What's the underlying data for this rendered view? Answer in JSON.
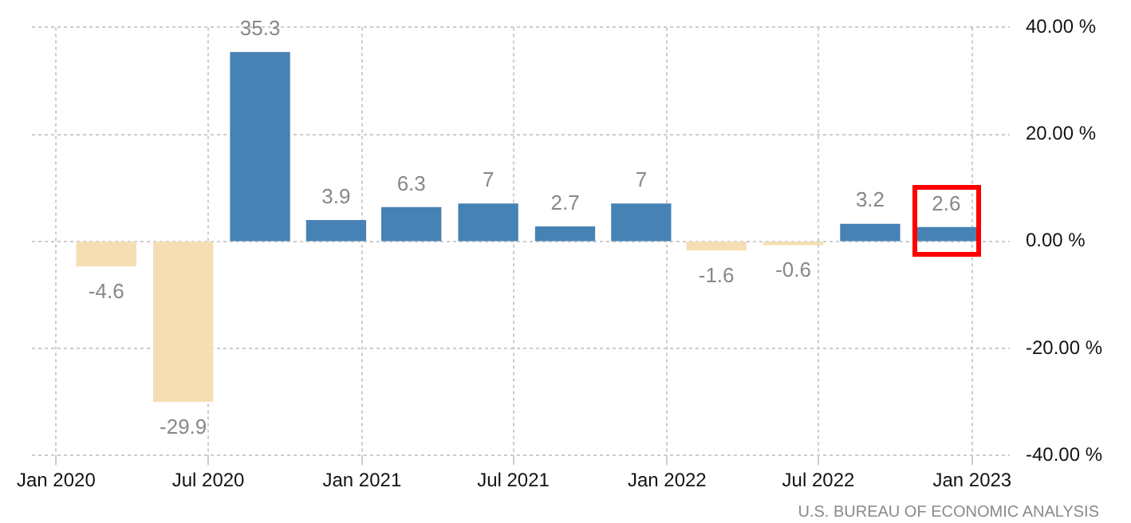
{
  "chart_data": {
    "type": "bar",
    "x": [
      "2020-03-01",
      "2020-06-01",
      "2020-09-01",
      "2020-12-01",
      "2021-03-01",
      "2021-06-01",
      "2021-09-01",
      "2021-12-01",
      "2022-03-01",
      "2022-06-01",
      "2022-09-01",
      "2022-12-01"
    ],
    "values": [
      -4.6,
      -29.9,
      35.3,
      3.9,
      6.3,
      7,
      2.7,
      7,
      -1.6,
      -0.6,
      3.2,
      2.6
    ],
    "colors": [
      "#f5deb3",
      "#f5deb3",
      "#4682b4",
      "#4682b4",
      "#4682b4",
      "#4682b4",
      "#4682b4",
      "#4682b4",
      "#f5deb3",
      "#f5deb3",
      "#4682b4",
      "#4682b4"
    ],
    "xlim": [
      "2019-12-03",
      "2023-02-15"
    ],
    "xticks": [
      {
        "value": "2020-01-01",
        "label": "Jan 2020"
      },
      {
        "value": "2020-07-01",
        "label": "Jul 2020"
      },
      {
        "value": "2021-01-01",
        "label": "Jan 2021"
      },
      {
        "value": "2021-07-01",
        "label": "Jul 2021"
      },
      {
        "value": "2022-01-01",
        "label": "Jan 2022"
      },
      {
        "value": "2022-07-01",
        "label": "Jul 2022"
      },
      {
        "value": "2023-01-01",
        "label": "Jan 2023"
      }
    ],
    "ylim": [
      -40,
      40
    ],
    "yticks": [
      {
        "value": -40,
        "label": "-40.00 %"
      },
      {
        "value": -20,
        "label": "-20.00 %"
      },
      {
        "value": 0,
        "label": "0.00 %"
      },
      {
        "value": 20,
        "label": "20.00 %"
      },
      {
        "value": 40,
        "label": "40.00 %"
      }
    ],
    "grid": true,
    "data_labels": true,
    "annotations": [
      "U.S. BUREAU OF ECONOMIC ANALYSIS"
    ]
  }
}
